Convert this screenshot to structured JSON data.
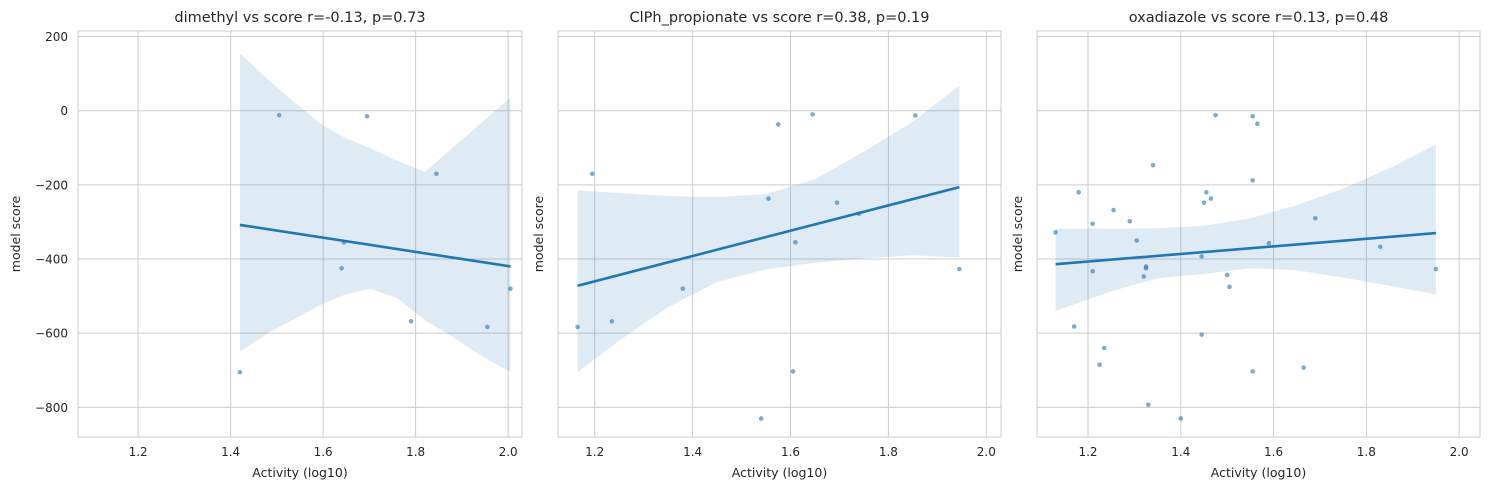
{
  "chart_data": [
    {
      "type": "scatter",
      "title": "dimethyl vs score r=-0.13, p=0.73",
      "xlabel": "Activity (log10)",
      "ylabel": "model score",
      "xlim": [
        1.07,
        2.03
      ],
      "ylim": [
        -880,
        215
      ],
      "xticks": [
        1.2,
        1.4,
        1.6,
        1.8,
        2.0
      ],
      "xtick_labels": [
        "1.2",
        "1.4",
        "1.6",
        "1.8",
        "2.0"
      ],
      "yticks": [
        200,
        0,
        -200,
        -400,
        -600,
        -800
      ],
      "ytick_labels": [
        "200",
        "0",
        "−200",
        "−400",
        "−600",
        "−800"
      ],
      "show_yticks": true,
      "grid": true,
      "points": [
        {
          "x": 1.42,
          "y": -705
        },
        {
          "x": 1.505,
          "y": -12
        },
        {
          "x": 1.64,
          "y": -425
        },
        {
          "x": 1.645,
          "y": -355
        },
        {
          "x": 1.695,
          "y": -15
        },
        {
          "x": 1.79,
          "y": -568
        },
        {
          "x": 1.845,
          "y": -170
        },
        {
          "x": 1.955,
          "y": -583
        },
        {
          "x": 2.005,
          "y": -480
        }
      ],
      "fit": {
        "x": [
          1.42,
          2.005
        ],
        "y": [
          -308,
          -420
        ]
      },
      "ci": {
        "x": [
          1.42,
          1.48,
          1.54,
          1.6,
          1.65,
          1.7,
          1.76,
          1.82,
          1.88,
          1.94,
          2.005
        ],
        "upper": [
          155,
          85,
          20,
          -40,
          -75,
          -100,
          -135,
          -165,
          -100,
          -35,
          35
        ],
        "lower": [
          -650,
          -600,
          -560,
          -520,
          -495,
          -480,
          -505,
          -565,
          -610,
          -660,
          -705
        ]
      }
    },
    {
      "type": "scatter",
      "title": "ClPh_propionate vs score r=0.38, p=0.19",
      "xlabel": "Activity (log10)",
      "ylabel": "model score",
      "xlim": [
        1.125,
        2.03
      ],
      "ylim": [
        -880,
        215
      ],
      "xticks": [
        1.2,
        1.4,
        1.6,
        1.8,
        2.0
      ],
      "xtick_labels": [
        "1.2",
        "1.4",
        "1.6",
        "1.8",
        "2.0"
      ],
      "yticks": [
        200,
        0,
        -200,
        -400,
        -600,
        -800
      ],
      "ytick_labels": [
        "200",
        "0",
        "−200",
        "−400",
        "−600",
        "−800"
      ],
      "show_yticks": false,
      "grid": true,
      "points": [
        {
          "x": 1.165,
          "y": -583
        },
        {
          "x": 1.195,
          "y": -170
        },
        {
          "x": 1.235,
          "y": -568
        },
        {
          "x": 1.38,
          "y": -480
        },
        {
          "x": 1.54,
          "y": -830
        },
        {
          "x": 1.555,
          "y": -237
        },
        {
          "x": 1.575,
          "y": -37
        },
        {
          "x": 1.605,
          "y": -703
        },
        {
          "x": 1.61,
          "y": -355
        },
        {
          "x": 1.645,
          "y": -10
        },
        {
          "x": 1.695,
          "y": -248
        },
        {
          "x": 1.74,
          "y": -278
        },
        {
          "x": 1.855,
          "y": -13
        },
        {
          "x": 1.945,
          "y": -427
        }
      ],
      "fit": {
        "x": [
          1.165,
          1.945
        ],
        "y": [
          -472,
          -206
        ]
      },
      "ci": {
        "x": [
          1.165,
          1.25,
          1.35,
          1.45,
          1.55,
          1.65,
          1.75,
          1.85,
          1.945
        ],
        "upper": [
          -215,
          -222,
          -230,
          -233,
          -225,
          -185,
          -110,
          -30,
          68
        ],
        "lower": [
          -705,
          -620,
          -530,
          -462,
          -428,
          -410,
          -398,
          -390,
          -396
        ]
      }
    },
    {
      "type": "scatter",
      "title": "oxadiazole vs score r=0.13, p=0.48",
      "xlabel": "Activity (log10)",
      "ylabel": "model score",
      "xlim": [
        1.09,
        2.045
      ],
      "ylim": [
        -880,
        215
      ],
      "xticks": [
        1.2,
        1.4,
        1.6,
        1.8,
        2.0
      ],
      "xtick_labels": [
        "1.2",
        "1.4",
        "1.6",
        "1.8",
        "2.0"
      ],
      "yticks": [
        200,
        0,
        -200,
        -400,
        -600,
        -800
      ],
      "ytick_labels": [
        "200",
        "0",
        "−200",
        "−400",
        "−600",
        "−800"
      ],
      "show_yticks": false,
      "grid": true,
      "points": [
        {
          "x": 1.13,
          "y": -328
        },
        {
          "x": 1.17,
          "y": -582
        },
        {
          "x": 1.18,
          "y": -220
        },
        {
          "x": 1.21,
          "y": -305
        },
        {
          "x": 1.21,
          "y": -433
        },
        {
          "x": 1.225,
          "y": -685
        },
        {
          "x": 1.235,
          "y": -640
        },
        {
          "x": 1.255,
          "y": -268
        },
        {
          "x": 1.29,
          "y": -298
        },
        {
          "x": 1.305,
          "y": -350
        },
        {
          "x": 1.32,
          "y": -447
        },
        {
          "x": 1.325,
          "y": -420
        },
        {
          "x": 1.325,
          "y": -425
        },
        {
          "x": 1.33,
          "y": -793
        },
        {
          "x": 1.34,
          "y": -147
        },
        {
          "x": 1.4,
          "y": -830
        },
        {
          "x": 1.445,
          "y": -393
        },
        {
          "x": 1.445,
          "y": -604
        },
        {
          "x": 1.45,
          "y": -248
        },
        {
          "x": 1.455,
          "y": -220
        },
        {
          "x": 1.465,
          "y": -237
        },
        {
          "x": 1.475,
          "y": -12
        },
        {
          "x": 1.5,
          "y": -443
        },
        {
          "x": 1.505,
          "y": -475
        },
        {
          "x": 1.555,
          "y": -703
        },
        {
          "x": 1.555,
          "y": -188
        },
        {
          "x": 1.555,
          "y": -15
        },
        {
          "x": 1.565,
          "y": -35
        },
        {
          "x": 1.59,
          "y": -357
        },
        {
          "x": 1.665,
          "y": -693
        },
        {
          "x": 1.69,
          "y": -290
        },
        {
          "x": 1.83,
          "y": -367
        },
        {
          "x": 1.95,
          "y": -427
        }
      ],
      "fit": {
        "x": [
          1.13,
          1.95
        ],
        "y": [
          -414,
          -330
        ]
      },
      "ci": {
        "x": [
          1.13,
          1.25,
          1.35,
          1.45,
          1.55,
          1.65,
          1.75,
          1.85,
          1.95
        ],
        "upper": [
          -318,
          -318,
          -317,
          -310,
          -290,
          -255,
          -210,
          -155,
          -92
        ],
        "lower": [
          -540,
          -487,
          -452,
          -440,
          -425,
          -430,
          -450,
          -472,
          -495
        ]
      }
    }
  ]
}
